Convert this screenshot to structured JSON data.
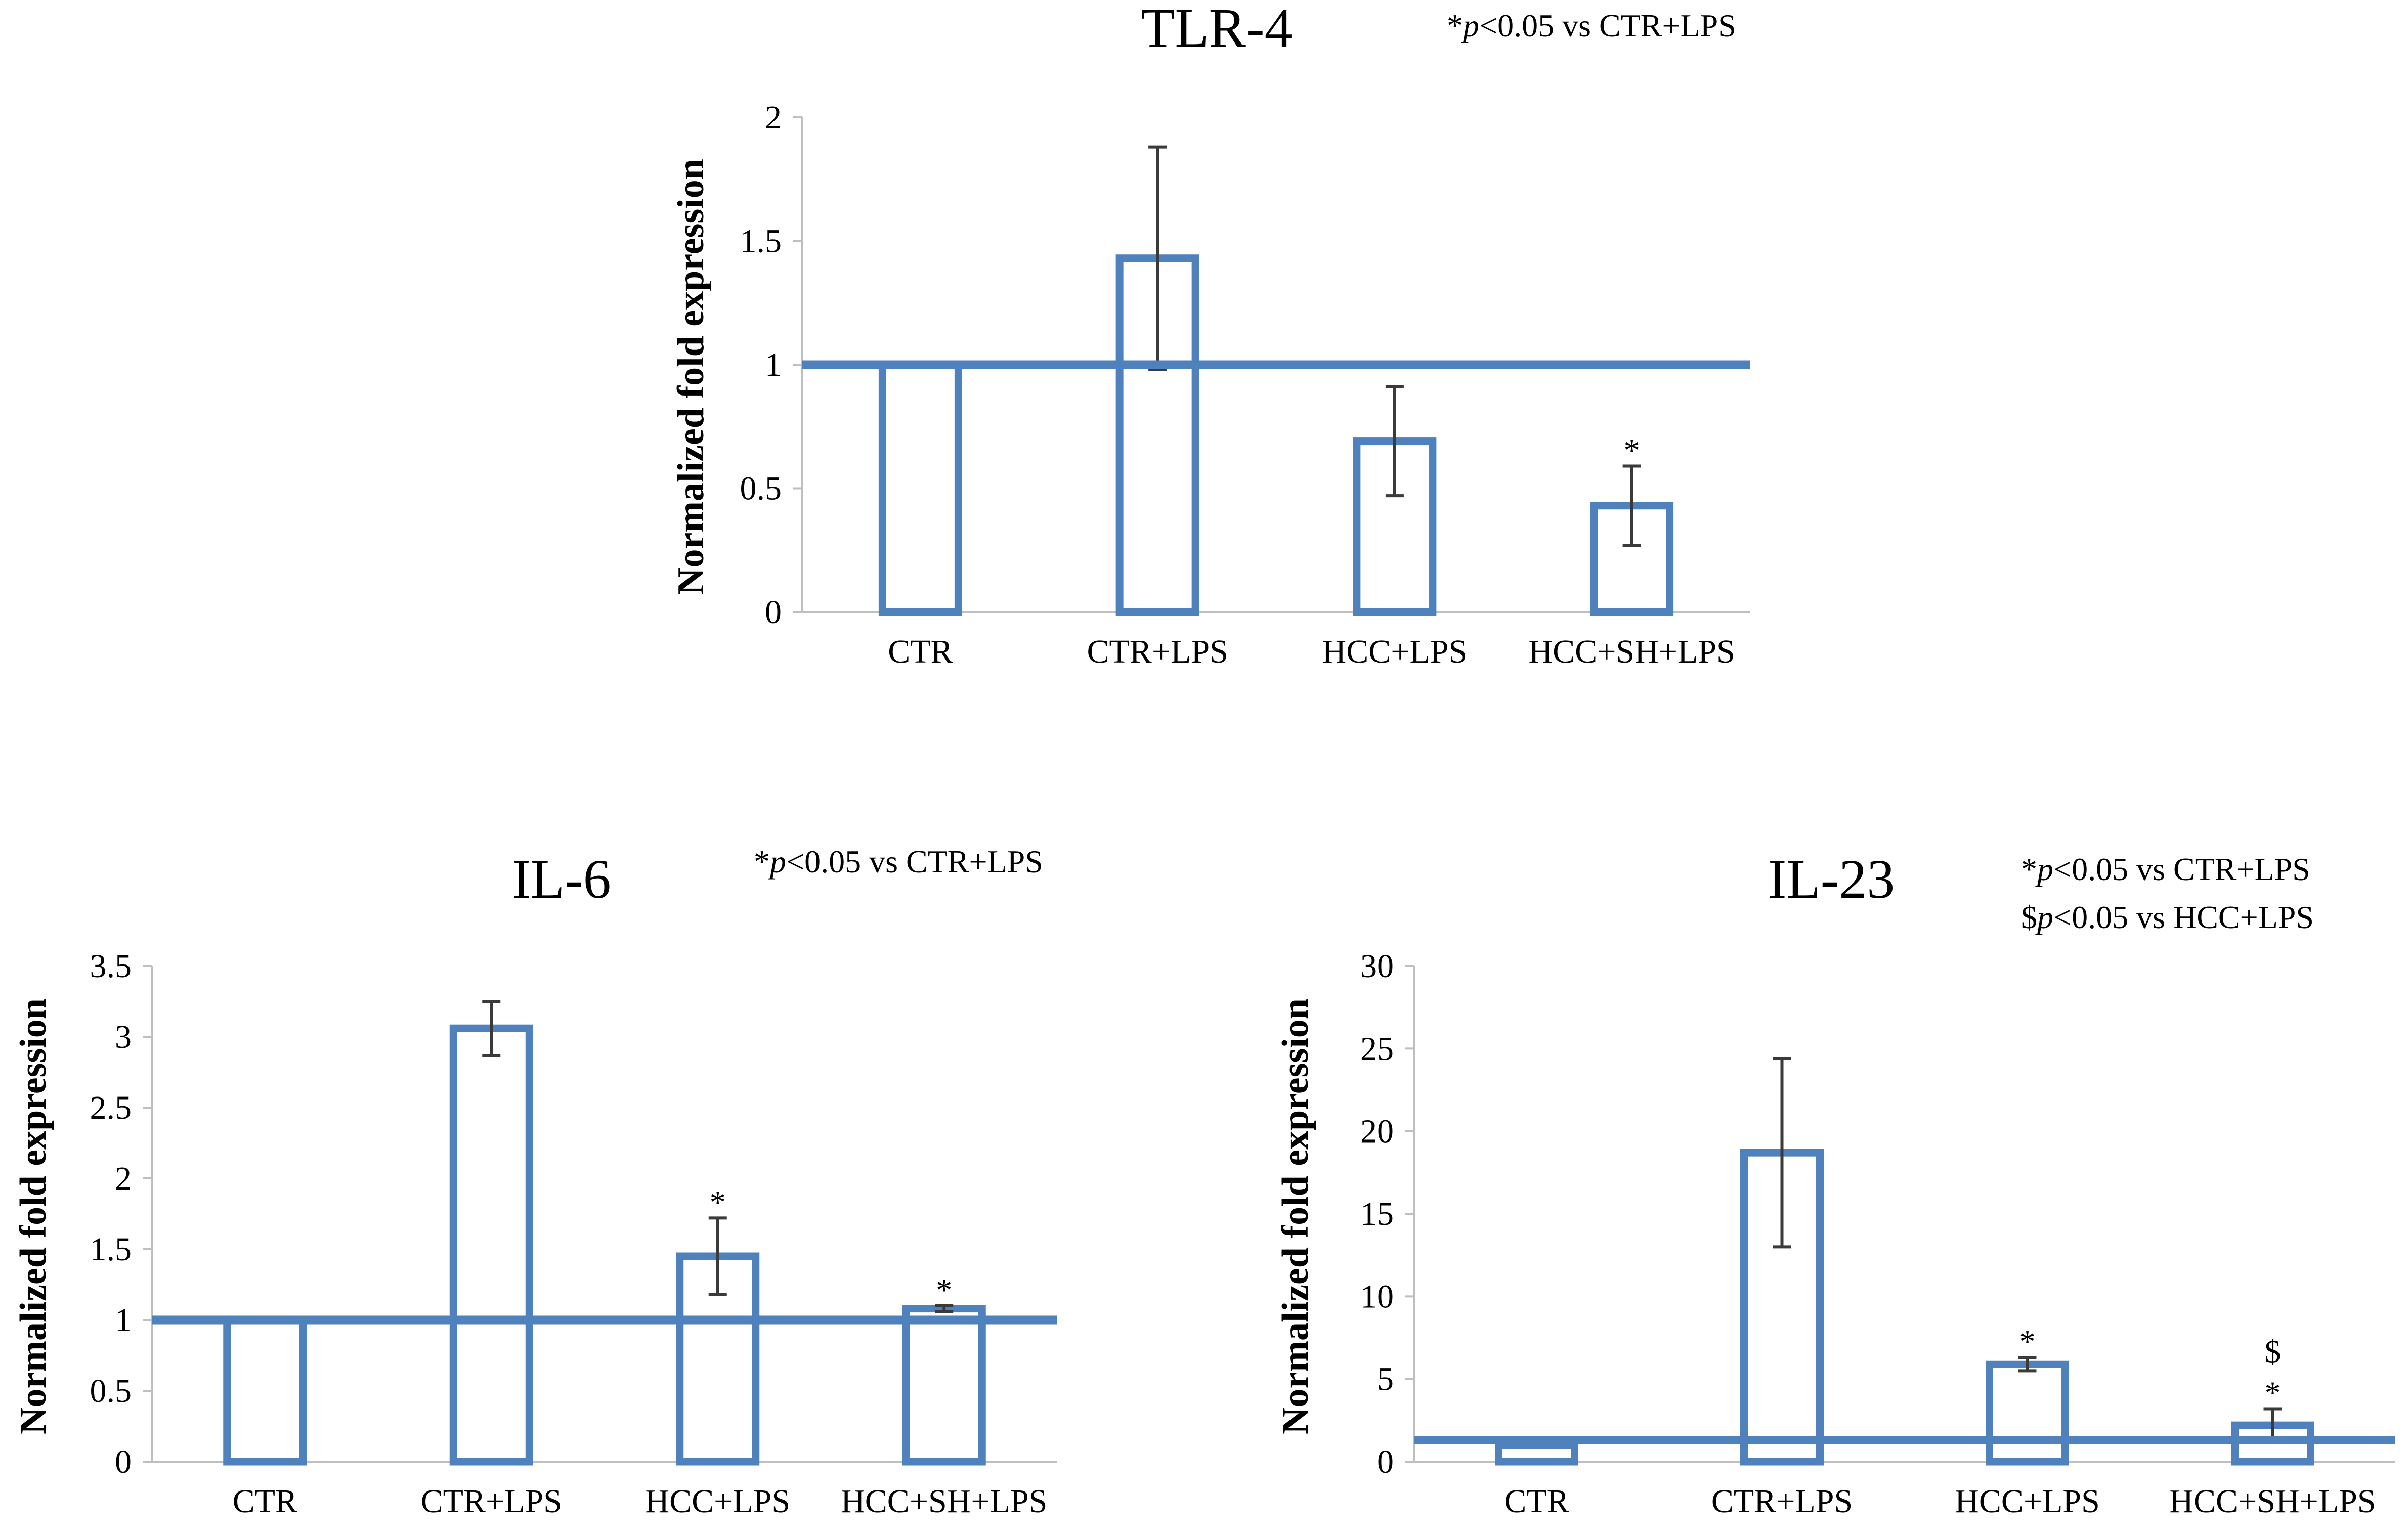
{
  "colors": {
    "bar": "#4f81bd",
    "axis": "#bfbfbf",
    "error": "#3a3a3a",
    "text": "#000000"
  },
  "chart_data": [
    {
      "id": "tlr4",
      "type": "bar",
      "title": "TLR-4",
      "notes": [
        {
          "pre": "*",
          "p": "p",
          "post": "<0.05 vs CTR+LPS"
        }
      ],
      "xlabel": "",
      "ylabel": "Normalized fold expression",
      "ylim": [
        0,
        2
      ],
      "yticks": [
        0,
        0.5,
        1,
        1.5,
        2
      ],
      "ytick_labels": [
        "0",
        "0.5",
        "1",
        "1.5",
        "2"
      ],
      "categories": [
        "CTR",
        "CTR+LPS",
        "HCC+LPS",
        "HCC+SH+LPS"
      ],
      "values": [
        1.0,
        1.43,
        0.69,
        0.43
      ],
      "errors": [
        0.0,
        0.45,
        0.22,
        0.16
      ],
      "markers": [
        [],
        [],
        [],
        [
          "*"
        ]
      ],
      "reference_line": 1.0,
      "grid": false
    },
    {
      "id": "il6",
      "type": "bar",
      "title": "IL-6",
      "notes": [
        {
          "pre": "*",
          "p": "p",
          "post": "<0.05 vs CTR+LPS"
        }
      ],
      "xlabel": "",
      "ylabel": "Normalized fold expression",
      "ylim": [
        0,
        3.5
      ],
      "yticks": [
        0,
        0.5,
        1,
        1.5,
        2,
        2.5,
        3,
        3.5
      ],
      "ytick_labels": [
        "0",
        "0.5",
        "1",
        "1.5",
        "2",
        "2.5",
        "3",
        "3.5"
      ],
      "categories": [
        "CTR",
        "CTR+LPS",
        "HCC+LPS",
        "HCC+SH+LPS"
      ],
      "values": [
        1.0,
        3.06,
        1.45,
        1.08
      ],
      "errors": [
        0.0,
        0.19,
        0.27,
        0.02
      ],
      "markers": [
        [],
        [],
        [
          "*"
        ],
        [
          "*"
        ]
      ],
      "reference_line": 1.0,
      "grid": false
    },
    {
      "id": "il23",
      "type": "bar",
      "title": "IL-23",
      "notes": [
        {
          "pre": "*",
          "p": "p",
          "post": "<0.05 vs CTR+LPS"
        },
        {
          "pre": "$",
          "p": "p",
          "post": "<0.05 vs HCC+LPS"
        }
      ],
      "xlabel": "",
      "ylabel": "Normalized fold expression",
      "ylim": [
        0,
        30
      ],
      "yticks": [
        0,
        5,
        10,
        15,
        20,
        25,
        30
      ],
      "ytick_labels": [
        "0",
        "5",
        "10",
        "15",
        "20",
        "25",
        "30"
      ],
      "categories": [
        "CTR",
        "CTR+LPS",
        "HCC+LPS",
        "HCC+SH+LPS"
      ],
      "values": [
        1.0,
        18.7,
        5.9,
        2.2
      ],
      "errors": [
        0.0,
        5.7,
        0.4,
        1.0
      ],
      "markers": [
        [],
        [],
        [
          "*"
        ],
        [
          "*",
          "$"
        ]
      ],
      "reference_line": 1.3,
      "grid": false
    }
  ]
}
